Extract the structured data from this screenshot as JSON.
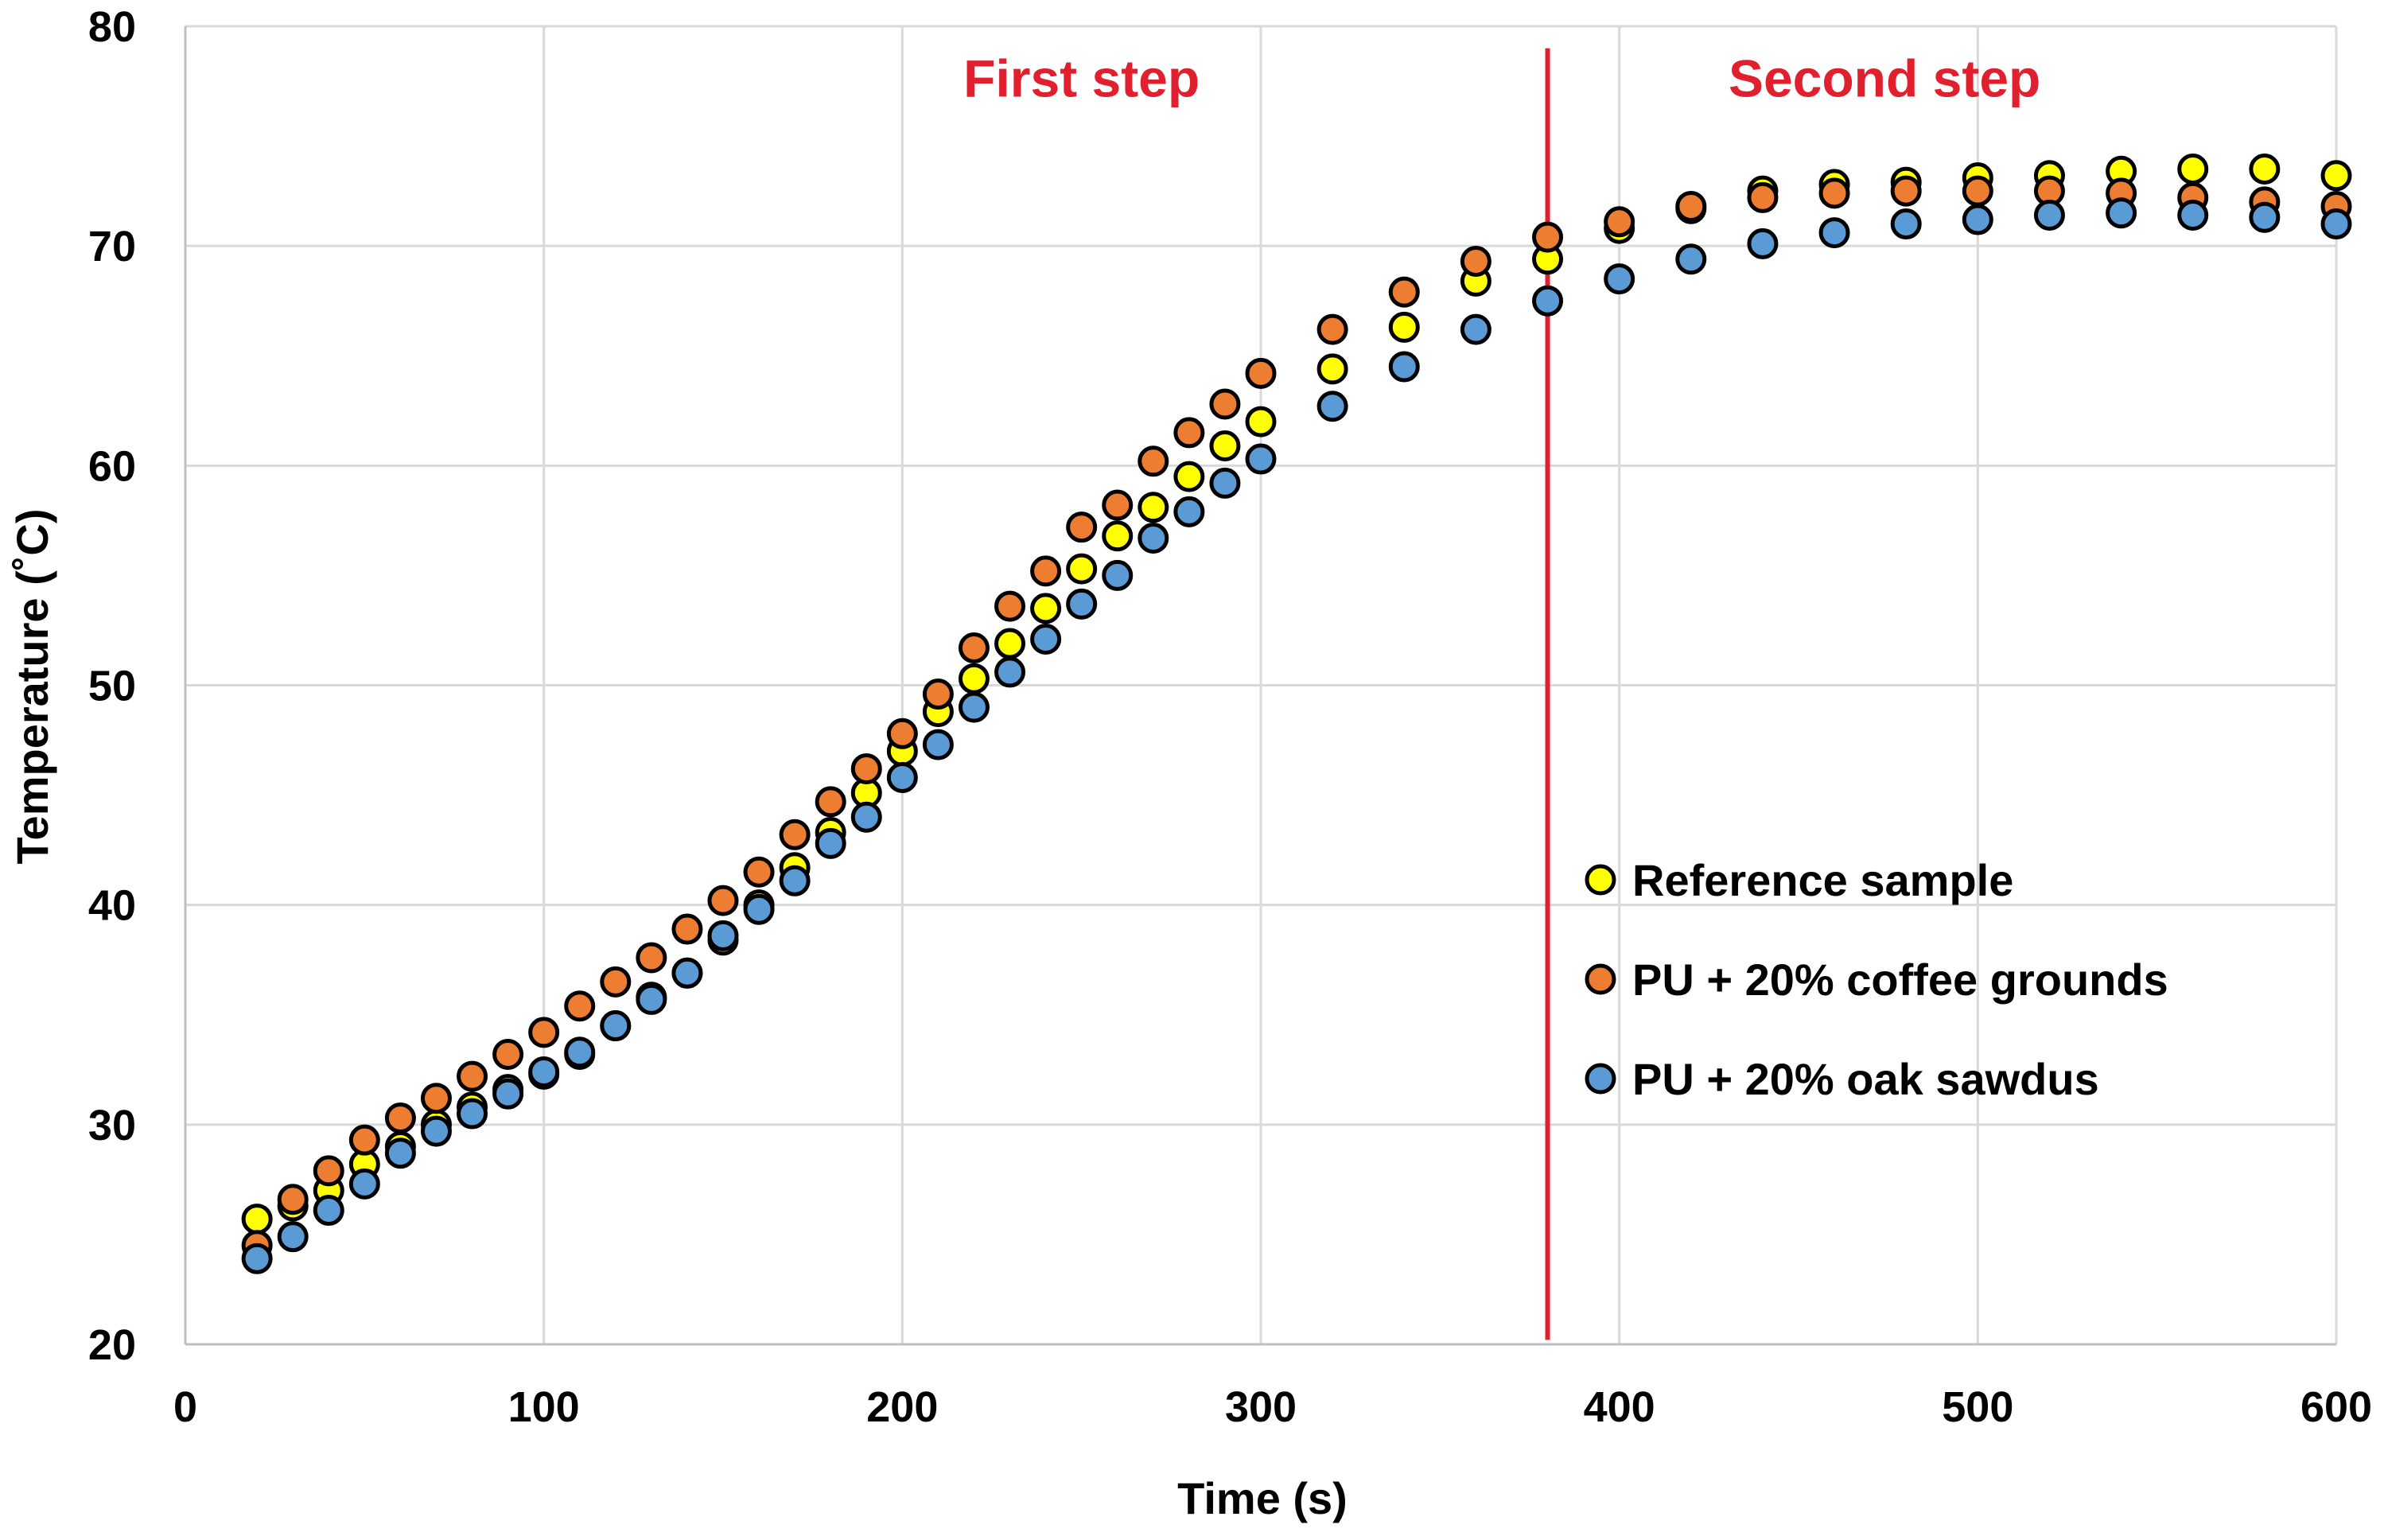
{
  "chart_data": {
    "type": "scatter",
    "xlabel": "Time (s)",
    "ylabel": "Temperature (˚C)",
    "xlim": [
      0,
      600
    ],
    "ylim": [
      20,
      80
    ],
    "x_ticks": [
      0,
      100,
      200,
      300,
      400,
      500,
      600
    ],
    "y_ticks": [
      20,
      30,
      40,
      50,
      60,
      70,
      80
    ],
    "grid": true,
    "legend_position": "right",
    "annotations": [
      {
        "text": "First step",
        "x": 250,
        "y": 76.8,
        "color": "#e0202e"
      },
      {
        "text": "Second step",
        "x": 474,
        "y": 76.8,
        "color": "#e0202e"
      }
    ],
    "vertical_line": {
      "x": 380,
      "y_from": 20.2,
      "y_to": 79.0,
      "color": "#e0202e"
    },
    "series": [
      {
        "name": "Reference sample",
        "color": "#ffff00",
        "points": [
          [
            20,
            25.7
          ],
          [
            30,
            26.3
          ],
          [
            40,
            27.0
          ],
          [
            50,
            28.2
          ],
          [
            60,
            29.0
          ],
          [
            70,
            30.0
          ],
          [
            80,
            30.8
          ],
          [
            90,
            31.6
          ],
          [
            100,
            32.3
          ],
          [
            110,
            33.2
          ],
          [
            120,
            34.5
          ],
          [
            130,
            35.8
          ],
          [
            140,
            36.9
          ],
          [
            150,
            38.4
          ],
          [
            160,
            40.0
          ],
          [
            170,
            41.7
          ],
          [
            180,
            43.3
          ],
          [
            190,
            45.1
          ],
          [
            200,
            47.0
          ],
          [
            210,
            48.8
          ],
          [
            220,
            50.3
          ],
          [
            230,
            51.9
          ],
          [
            240,
            53.5
          ],
          [
            250,
            55.3
          ],
          [
            260,
            56.8
          ],
          [
            270,
            58.1
          ],
          [
            280,
            59.5
          ],
          [
            290,
            60.9
          ],
          [
            300,
            62.0
          ],
          [
            320,
            64.4
          ],
          [
            340,
            66.3
          ],
          [
            360,
            68.4
          ],
          [
            380,
            69.4
          ],
          [
            400,
            70.8
          ],
          [
            420,
            71.7
          ],
          [
            440,
            72.5
          ],
          [
            460,
            72.8
          ],
          [
            480,
            72.9
          ],
          [
            500,
            73.1
          ],
          [
            520,
            73.2
          ],
          [
            540,
            73.4
          ],
          [
            560,
            73.5
          ],
          [
            580,
            73.5
          ],
          [
            600,
            73.2
          ]
        ]
      },
      {
        "name": "PU + 20% coffee grounds",
        "color": "#ed7d31",
        "points": [
          [
            20,
            24.5
          ],
          [
            30,
            26.6
          ],
          [
            40,
            27.9
          ],
          [
            50,
            29.3
          ],
          [
            60,
            30.3
          ],
          [
            70,
            31.2
          ],
          [
            80,
            32.2
          ],
          [
            90,
            33.2
          ],
          [
            100,
            34.2
          ],
          [
            110,
            35.4
          ],
          [
            120,
            36.5
          ],
          [
            130,
            37.6
          ],
          [
            140,
            38.9
          ],
          [
            150,
            40.2
          ],
          [
            160,
            41.5
          ],
          [
            170,
            43.2
          ],
          [
            180,
            44.7
          ],
          [
            190,
            46.2
          ],
          [
            200,
            47.8
          ],
          [
            210,
            49.6
          ],
          [
            220,
            51.7
          ],
          [
            230,
            53.6
          ],
          [
            240,
            55.2
          ],
          [
            250,
            57.2
          ],
          [
            260,
            58.2
          ],
          [
            270,
            60.2
          ],
          [
            280,
            61.5
          ],
          [
            290,
            62.8
          ],
          [
            300,
            64.2
          ],
          [
            320,
            66.2
          ],
          [
            340,
            67.9
          ],
          [
            360,
            69.3
          ],
          [
            380,
            70.4
          ],
          [
            400,
            71.1
          ],
          [
            420,
            71.8
          ],
          [
            440,
            72.2
          ],
          [
            460,
            72.4
          ],
          [
            480,
            72.5
          ],
          [
            500,
            72.5
          ],
          [
            520,
            72.5
          ],
          [
            540,
            72.4
          ],
          [
            560,
            72.2
          ],
          [
            580,
            72.0
          ],
          [
            600,
            71.8
          ]
        ]
      },
      {
        "name": "PU + 20% oak sawdus",
        "color": "#5b9bd5",
        "points": [
          [
            20,
            23.9
          ],
          [
            30,
            24.9
          ],
          [
            40,
            26.1
          ],
          [
            50,
            27.3
          ],
          [
            60,
            28.7
          ],
          [
            70,
            29.7
          ],
          [
            80,
            30.5
          ],
          [
            90,
            31.4
          ],
          [
            100,
            32.4
          ],
          [
            110,
            33.3
          ],
          [
            120,
            34.5
          ],
          [
            130,
            35.7
          ],
          [
            140,
            36.9
          ],
          [
            150,
            38.6
          ],
          [
            160,
            39.8
          ],
          [
            170,
            41.1
          ],
          [
            180,
            42.8
          ],
          [
            190,
            44.0
          ],
          [
            200,
            45.8
          ],
          [
            210,
            47.3
          ],
          [
            220,
            49.0
          ],
          [
            230,
            50.6
          ],
          [
            240,
            52.1
          ],
          [
            250,
            53.7
          ],
          [
            260,
            55.0
          ],
          [
            270,
            56.7
          ],
          [
            280,
            57.9
          ],
          [
            290,
            59.2
          ],
          [
            300,
            60.3
          ],
          [
            320,
            62.7
          ],
          [
            340,
            64.5
          ],
          [
            360,
            66.2
          ],
          [
            380,
            67.5
          ],
          [
            400,
            68.5
          ],
          [
            420,
            69.4
          ],
          [
            440,
            70.1
          ],
          [
            460,
            70.6
          ],
          [
            480,
            71.0
          ],
          [
            500,
            71.2
          ],
          [
            520,
            71.4
          ],
          [
            540,
            71.5
          ],
          [
            560,
            71.4
          ],
          [
            580,
            71.3
          ],
          [
            600,
            71.0
          ]
        ]
      }
    ]
  }
}
